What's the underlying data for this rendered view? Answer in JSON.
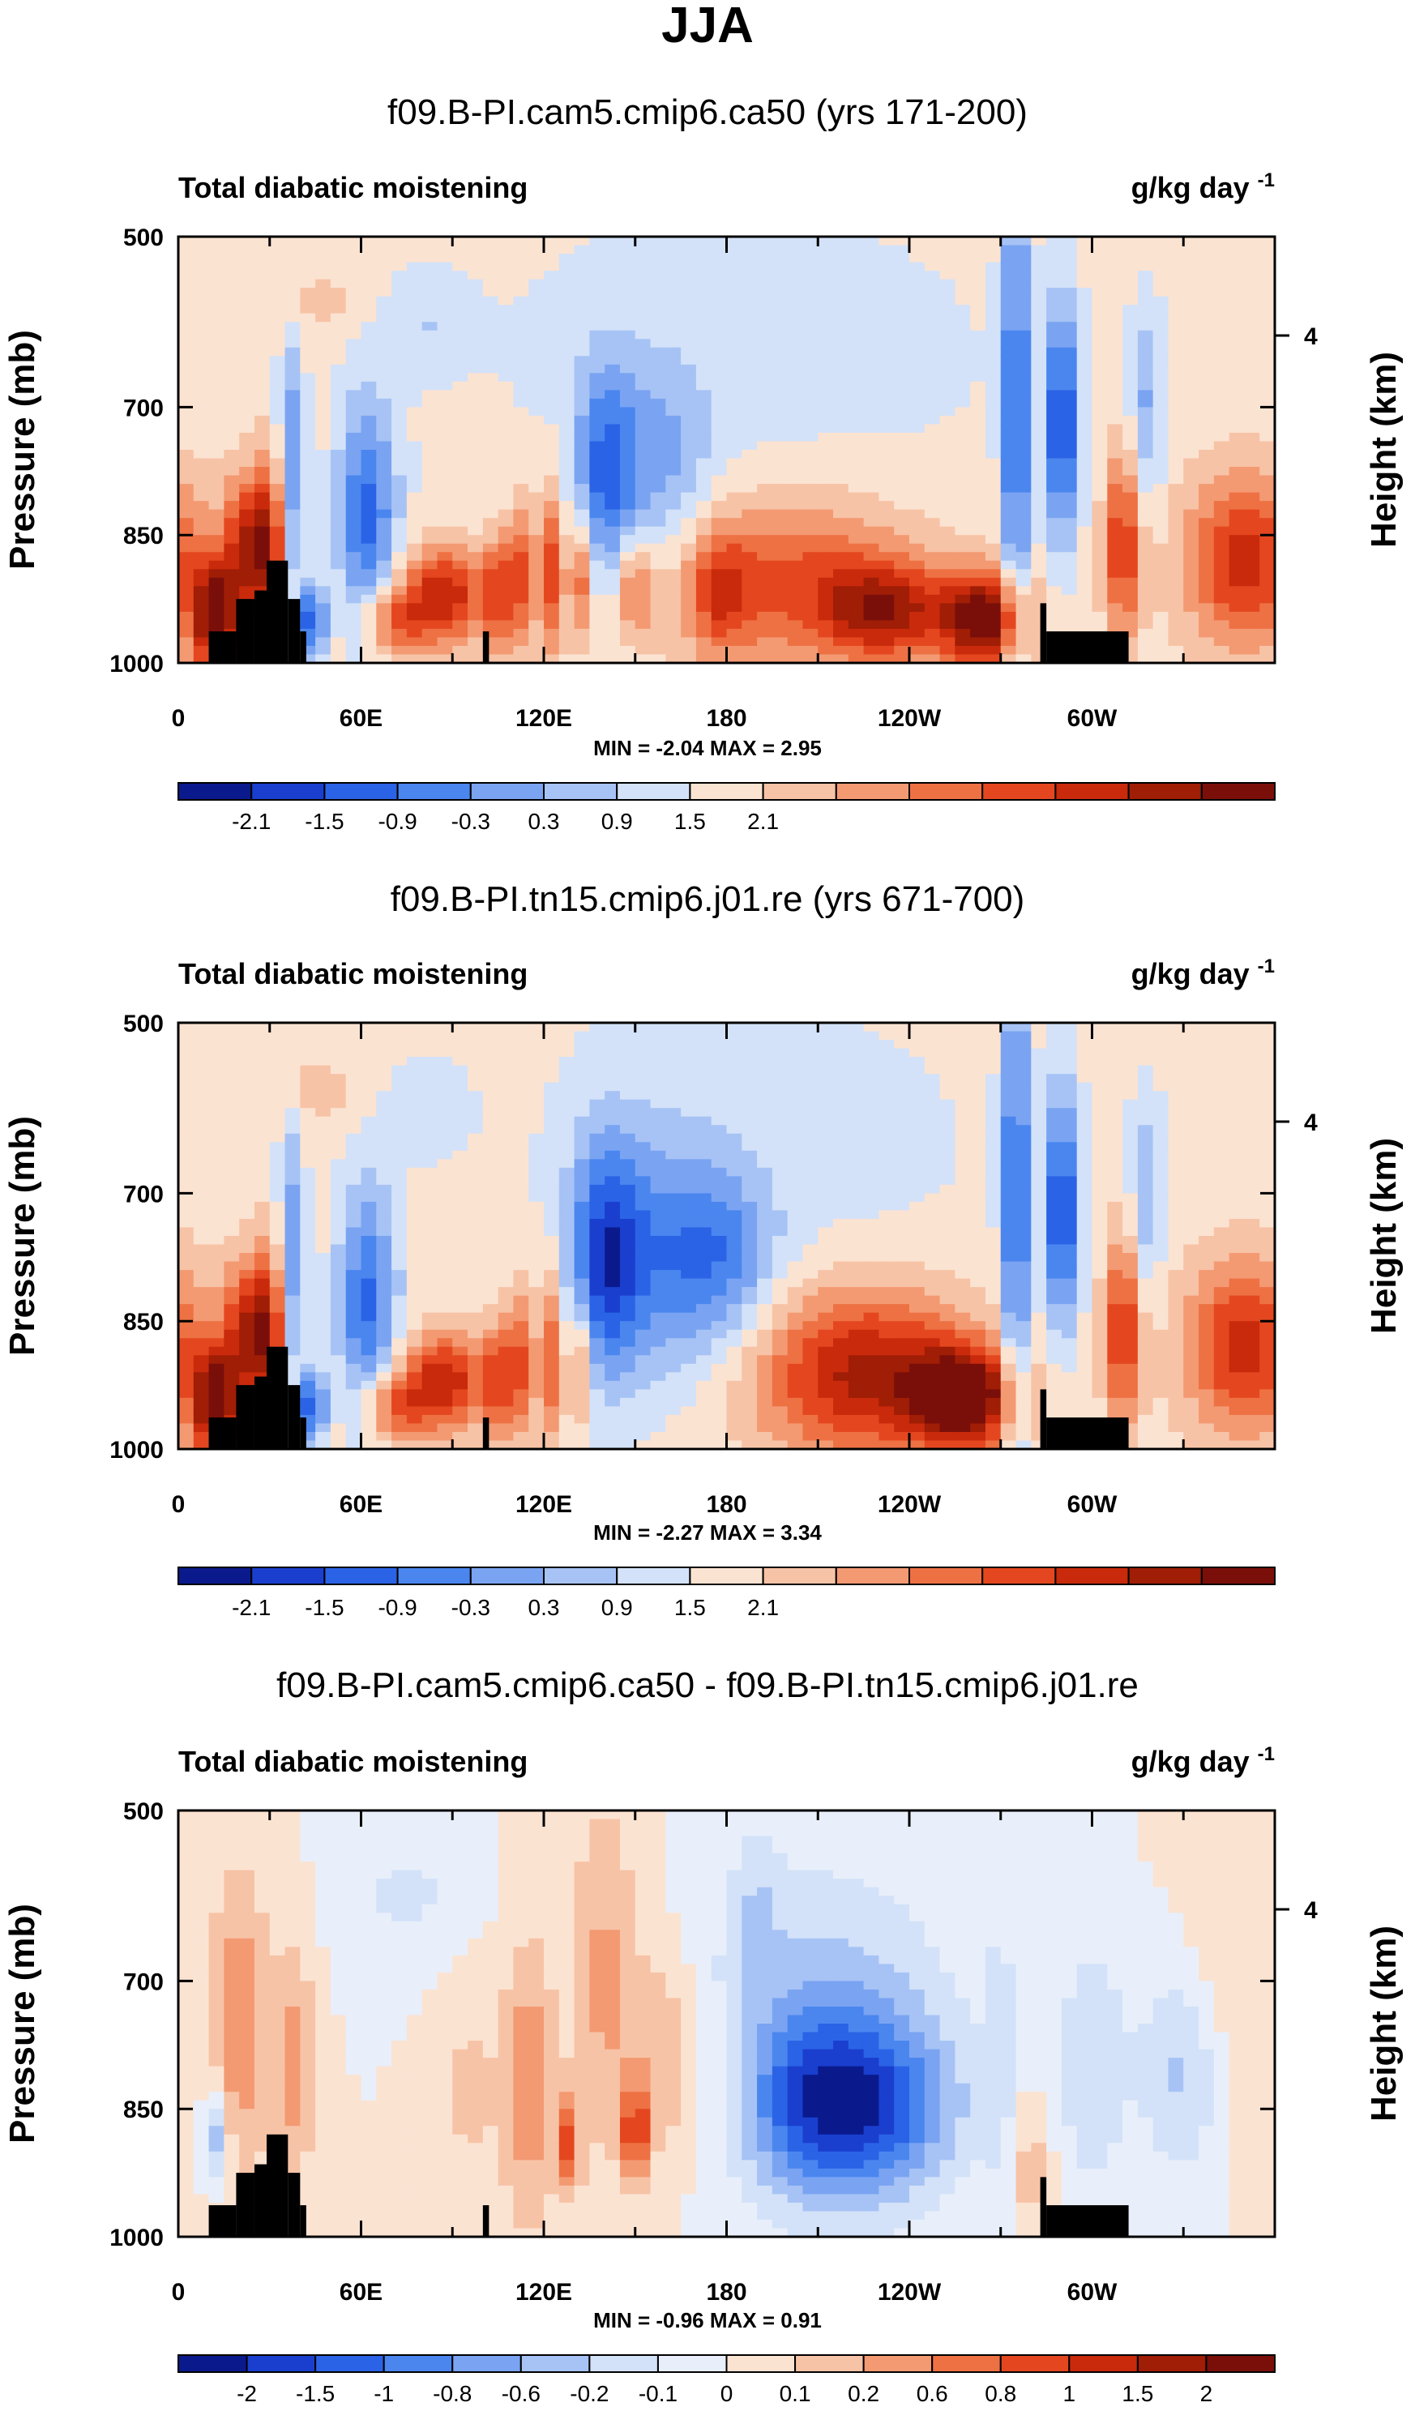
{
  "figure": {
    "title": "JJA"
  },
  "scale_ticks": [
    [
      "-2.1",
      "-1.5",
      "-0.9",
      "-0.3",
      "0.3",
      "0.9",
      "1.5",
      "2.1"
    ],
    [
      "-2.1",
      "-1.5",
      "-0.9",
      "-0.3",
      "0.3",
      "0.9",
      "1.5",
      "2.1"
    ],
    [
      "-2",
      "-1.5",
      "-1",
      "-0.8",
      "-0.6",
      "-0.2",
      "-0.1",
      "0",
      "0.1",
      "0.2",
      "0.6",
      "0.8",
      "1",
      "1.5",
      "2"
    ]
  ],
  "chart_data": [
    {
      "type": "heatmap",
      "title": "f09.B-PI.cam5.cmip6.ca50 (yrs 171-200)",
      "left_label": "Total diabatic moistening",
      "units_base": "g/kg day",
      "units_exp": "-1",
      "ylabel": "Pressure (mb)",
      "ylabel_right": "Height (km)",
      "yticks": [
        "500",
        "700",
        "850",
        "1000"
      ],
      "ytick_values": [
        500,
        700,
        850,
        1000
      ],
      "ylim": [
        500,
        1000
      ],
      "right_ticks": [
        "4"
      ],
      "right_tick_pressure": 616,
      "xticks": [
        "0",
        "60E",
        "120E",
        "180",
        "120W",
        "60W"
      ],
      "xtick_lons": [
        0,
        60,
        120,
        180,
        240,
        300
      ],
      "xlim": [
        0,
        360
      ],
      "stats": "MIN = -2.04  MAX =   2.95",
      "colorbar_ticks": [
        "-2.1",
        "-1.5",
        "-0.9",
        "-0.3",
        "0.3",
        "0.9",
        "1.5",
        "2.1"
      ],
      "colorbar_colors": [
        "#0a1a8c",
        "#1a3fcf",
        "#2b63e6",
        "#4b86ef",
        "#7aa4f2",
        "#a7c3f5",
        "#d3e2f8",
        "#fbe3d2",
        "#f7c3a6",
        "#f39a73",
        "#ee7144",
        "#e4471f",
        "#c92a0b",
        "#a01d06",
        "#7a0f0a"
      ]
    },
    {
      "type": "heatmap",
      "title": "f09.B-PI.tn15.cmip6.j01.re (yrs 671-700)",
      "left_label": "Total diabatic moistening",
      "units_base": "g/kg day",
      "units_exp": "-1",
      "ylabel": "Pressure (mb)",
      "ylabel_right": "Height (km)",
      "yticks": [
        "500",
        "700",
        "850",
        "1000"
      ],
      "ytick_values": [
        500,
        700,
        850,
        1000
      ],
      "ylim": [
        500,
        1000
      ],
      "right_ticks": [
        "4"
      ],
      "right_tick_pressure": 616,
      "xticks": [
        "0",
        "60E",
        "120E",
        "180",
        "120W",
        "60W"
      ],
      "xtick_lons": [
        0,
        60,
        120,
        180,
        240,
        300
      ],
      "xlim": [
        0,
        360
      ],
      "stats": "MIN = -2.27  MAX =   3.34",
      "colorbar_ticks": [
        "-2.1",
        "-1.5",
        "-0.9",
        "-0.3",
        "0.3",
        "0.9",
        "1.5",
        "2.1"
      ],
      "colorbar_colors": [
        "#0a1a8c",
        "#1a3fcf",
        "#2b63e6",
        "#4b86ef",
        "#7aa4f2",
        "#a7c3f5",
        "#d3e2f8",
        "#fbe3d2",
        "#f7c3a6",
        "#f39a73",
        "#ee7144",
        "#e4471f",
        "#c92a0b",
        "#a01d06",
        "#7a0f0a"
      ]
    },
    {
      "type": "heatmap",
      "title": "f09.B-PI.cam5.cmip6.ca50 - f09.B-PI.tn15.cmip6.j01.re",
      "left_label": "Total diabatic moistening",
      "units_base": "g/kg day",
      "units_exp": "-1",
      "ylabel": "Pressure (mb)",
      "ylabel_right": "Height (km)",
      "yticks": [
        "500",
        "700",
        "850",
        "1000"
      ],
      "ytick_values": [
        500,
        700,
        850,
        1000
      ],
      "ylim": [
        500,
        1000
      ],
      "right_ticks": [
        "4"
      ],
      "right_tick_pressure": 616,
      "xticks": [
        "0",
        "60E",
        "120E",
        "180",
        "120W",
        "60W"
      ],
      "xtick_lons": [
        0,
        60,
        120,
        180,
        240,
        300
      ],
      "xlim": [
        0,
        360
      ],
      "stats": "MIN = -0.96  MAX =   0.91",
      "colorbar_ticks": [
        "-2",
        "-1.5",
        "-1",
        "-0.8",
        "-0.6",
        "-0.2",
        "-0.1",
        "0",
        "0.1",
        "0.2",
        "0.6",
        "0.8",
        "1",
        "1.5",
        "2"
      ],
      "colorbar_colors": [
        "#0a1a8c",
        "#1a3fcf",
        "#2b63e6",
        "#4b86ef",
        "#7aa4f2",
        "#a7c3f5",
        "#d3e2f8",
        "#e8effa",
        "#fbe3d2",
        "#f7c3a6",
        "#f39a73",
        "#ee7144",
        "#e4471f",
        "#c92a0b",
        "#a01d06",
        "#7a0f0a"
      ]
    }
  ]
}
